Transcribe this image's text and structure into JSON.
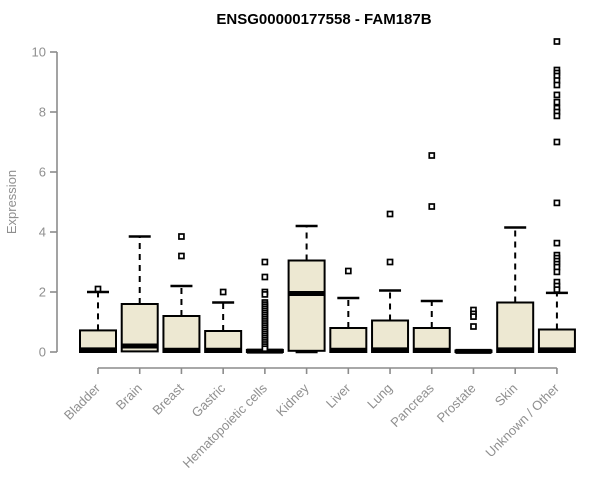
{
  "chart_data": {
    "type": "boxplot",
    "title": "ENSG00000177558 - FAM187B",
    "xlabel": "",
    "ylabel": "Expression",
    "ylim": [
      0,
      10
    ],
    "yticks": [
      0,
      2,
      4,
      6,
      8,
      10
    ],
    "grid": false,
    "legend": "none",
    "box_fill_color": "#ede8d2",
    "box_border_color": "#000000",
    "axis_color": "#8c8c8c",
    "label_color": "#8f8f8f",
    "title_color": "#000000",
    "categories": [
      "Bladder",
      "Brain",
      "Breast",
      "Gastric",
      "Hematopoietic cells",
      "Kidney",
      "Liver",
      "Lung",
      "Pancreas",
      "Prostate",
      "Skin",
      "Unknown / Other"
    ],
    "series": [
      {
        "name": "Bladder",
        "q1": 0,
        "median": 0.07,
        "q3": 0.72,
        "whisker_low": 0,
        "whisker_high": 2.0,
        "outliers": [
          2.1
        ]
      },
      {
        "name": "Brain",
        "q1": 0.02,
        "median": 0.2,
        "q3": 1.6,
        "whisker_low": 0,
        "whisker_high": 3.85,
        "outliers": []
      },
      {
        "name": "Breast",
        "q1": 0,
        "median": 0.06,
        "q3": 1.2,
        "whisker_low": 0,
        "whisker_high": 2.2,
        "outliers": [
          3.85,
          3.2
        ]
      },
      {
        "name": "Gastric",
        "q1": 0,
        "median": 0.06,
        "q3": 0.7,
        "whisker_low": 0,
        "whisker_high": 1.65,
        "outliers": [
          2.0
        ]
      },
      {
        "name": "Hematopoietic cells",
        "q1": 0,
        "median": 0.03,
        "q3": 0.07,
        "whisker_low": 0,
        "whisker_high": 0.07,
        "outliers": [
          3.0,
          2.5,
          2.0,
          1.92,
          1.65,
          1.58,
          1.51,
          1.44,
          1.37,
          1.3,
          1.23,
          1.16,
          1.09,
          1.02,
          0.95,
          0.88,
          0.81,
          0.74,
          0.67,
          0.6,
          0.53,
          0.46,
          0.39,
          0.32,
          0.25,
          0.18,
          0.11
        ]
      },
      {
        "name": "Kidney",
        "q1": 0.04,
        "median": 1.95,
        "q3": 3.05,
        "whisker_low": 0,
        "whisker_high": 4.2,
        "outliers": []
      },
      {
        "name": "Liver",
        "q1": 0,
        "median": 0.06,
        "q3": 0.8,
        "whisker_low": 0,
        "whisker_high": 1.8,
        "outliers": [
          2.7
        ]
      },
      {
        "name": "Lung",
        "q1": 0,
        "median": 0.07,
        "q3": 1.05,
        "whisker_low": 0,
        "whisker_high": 2.05,
        "outliers": [
          4.6,
          3.0
        ]
      },
      {
        "name": "Pancreas",
        "q1": 0,
        "median": 0.06,
        "q3": 0.8,
        "whisker_low": 0,
        "whisker_high": 1.7,
        "outliers": [
          6.55,
          4.85
        ]
      },
      {
        "name": "Prostate",
        "q1": 0,
        "median": 0.02,
        "q3": 0.05,
        "whisker_low": 0,
        "whisker_high": 0.05,
        "outliers": [
          1.4,
          1.27,
          1.18,
          0.85
        ]
      },
      {
        "name": "Skin",
        "q1": 0,
        "median": 0.07,
        "q3": 1.65,
        "whisker_low": 0,
        "whisker_high": 4.15,
        "outliers": []
      },
      {
        "name": "Unknown / Other",
        "q1": 0,
        "median": 0.07,
        "q3": 0.75,
        "whisker_low": 0,
        "whisker_high": 1.97,
        "outliers": [
          10.35,
          9.4,
          9.3,
          9.2,
          9.05,
          8.9,
          8.57,
          8.33,
          8.13,
          8.0,
          7.87,
          7.0,
          4.97,
          3.63,
          3.23,
          3.13,
          3.03,
          2.93,
          2.83,
          2.67,
          2.33,
          2.2,
          2.08
        ]
      }
    ]
  }
}
